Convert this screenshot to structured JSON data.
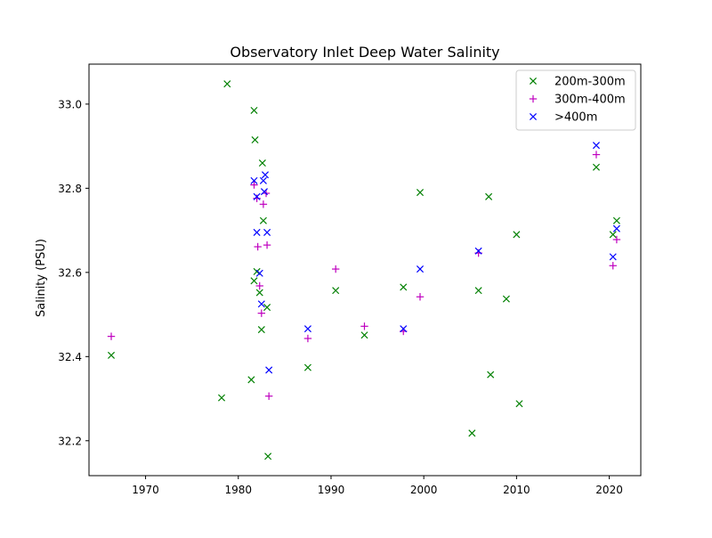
{
  "chart_data": {
    "type": "scatter",
    "title": "Observatory Inlet Deep Water Salinity",
    "xlabel": "",
    "ylabel": "Salinity (PSU)",
    "xlim": [
      1963.9,
      2023.4
    ],
    "ylim": [
      32.117,
      33.095
    ],
    "xticks": [
      1970,
      1980,
      1990,
      2000,
      2010,
      2020
    ],
    "xtick_labels": [
      "1970",
      "1980",
      "1990",
      "2000",
      "2010",
      "2020"
    ],
    "yticks": [
      32.2,
      32.4,
      32.6,
      32.8,
      33.0
    ],
    "ytick_labels": [
      "32.2",
      "32.4",
      "32.6",
      "32.8",
      "33.0"
    ],
    "grid": false,
    "legend": "top-right",
    "series": [
      {
        "name": "200m-300m",
        "marker": "x",
        "color": "#008000",
        "points": [
          [
            1966.3,
            32.403
          ],
          [
            1978.2,
            32.302
          ],
          [
            1978.8,
            33.048
          ],
          [
            1981.4,
            32.345
          ],
          [
            1981.7,
            32.985
          ],
          [
            1981.8,
            32.915
          ],
          [
            1981.7,
            32.58
          ],
          [
            1982.0,
            32.602
          ],
          [
            1982.3,
            32.552
          ],
          [
            1982.5,
            32.464
          ],
          [
            1982.6,
            32.86
          ],
          [
            1982.7,
            32.723
          ],
          [
            1983.1,
            32.517
          ],
          [
            1983.2,
            32.163
          ],
          [
            1987.5,
            32.374
          ],
          [
            1990.5,
            32.557
          ],
          [
            1993.6,
            32.451
          ],
          [
            1997.8,
            32.565
          ],
          [
            1999.6,
            32.79
          ],
          [
            2005.2,
            32.218
          ],
          [
            2005.9,
            32.557
          ],
          [
            2007.0,
            32.78
          ],
          [
            2007.2,
            32.357
          ],
          [
            2008.9,
            32.537
          ],
          [
            2010.0,
            32.69
          ],
          [
            2010.3,
            32.288
          ],
          [
            2018.6,
            32.85
          ],
          [
            2020.4,
            32.69
          ],
          [
            2020.8,
            32.723
          ]
        ]
      },
      {
        "name": "300m-400m",
        "marker": "+",
        "color": "#bf00bf",
        "points": [
          [
            1966.3,
            32.448
          ],
          [
            1981.7,
            32.808
          ],
          [
            1982.0,
            32.776
          ],
          [
            1982.1,
            32.661
          ],
          [
            1982.3,
            32.568
          ],
          [
            1982.5,
            32.503
          ],
          [
            1982.7,
            32.762
          ],
          [
            1983.0,
            32.788
          ],
          [
            1983.1,
            32.665
          ],
          [
            1983.3,
            32.306
          ],
          [
            1987.5,
            32.443
          ],
          [
            1990.5,
            32.608
          ],
          [
            1993.6,
            32.472
          ],
          [
            1997.8,
            32.46
          ],
          [
            1999.6,
            32.542
          ],
          [
            2005.9,
            32.646
          ],
          [
            2018.6,
            32.88
          ],
          [
            2020.4,
            32.616
          ],
          [
            2020.8,
            32.678
          ]
        ]
      },
      {
        "name": ">400m",
        "marker": "x",
        "color": "#0000ff",
        "points": [
          [
            1981.7,
            32.818
          ],
          [
            1982.0,
            32.78
          ],
          [
            1982.0,
            32.695
          ],
          [
            1982.3,
            32.598
          ],
          [
            1982.5,
            32.525
          ],
          [
            1982.7,
            32.818
          ],
          [
            1982.8,
            32.792
          ],
          [
            1982.9,
            32.832
          ],
          [
            1983.1,
            32.695
          ],
          [
            1983.3,
            32.368
          ],
          [
            1987.5,
            32.466
          ],
          [
            1997.8,
            32.466
          ],
          [
            1999.6,
            32.608
          ],
          [
            2005.9,
            32.651
          ],
          [
            2018.6,
            32.902
          ],
          [
            2020.4,
            32.637
          ],
          [
            2020.8,
            32.704
          ]
        ]
      }
    ]
  }
}
